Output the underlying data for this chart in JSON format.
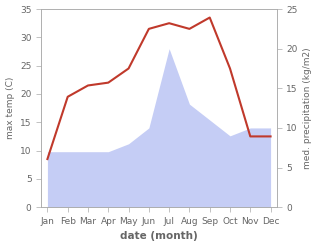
{
  "months": [
    "Jan",
    "Feb",
    "Mar",
    "Apr",
    "May",
    "Jun",
    "Jul",
    "Aug",
    "Sep",
    "Oct",
    "Nov",
    "Dec"
  ],
  "temperature": [
    8.5,
    19.5,
    21.5,
    22.0,
    24.5,
    31.5,
    32.5,
    31.5,
    33.5,
    24.5,
    12.5,
    12.5
  ],
  "precipitation": [
    7,
    7,
    7,
    7,
    8,
    10,
    20,
    13,
    11,
    9,
    10,
    10
  ],
  "temp_color": "#c0392b",
  "precip_fill_color": "#c5cdf5",
  "temp_ylim": [
    0,
    35
  ],
  "precip_ylim": [
    0,
    25
  ],
  "temp_yticks": [
    0,
    5,
    10,
    15,
    20,
    25,
    30,
    35
  ],
  "precip_yticks": [
    0,
    5,
    10,
    15,
    20,
    25
  ],
  "xlabel": "date (month)",
  "ylabel_left": "max temp (C)",
  "ylabel_right": "med. precipitation (kg/m2)",
  "background_color": "#ffffff",
  "spine_color": "#aaaaaa",
  "tick_color": "#666666",
  "label_fontsize": 6.5,
  "xlabel_fontsize": 7.5
}
